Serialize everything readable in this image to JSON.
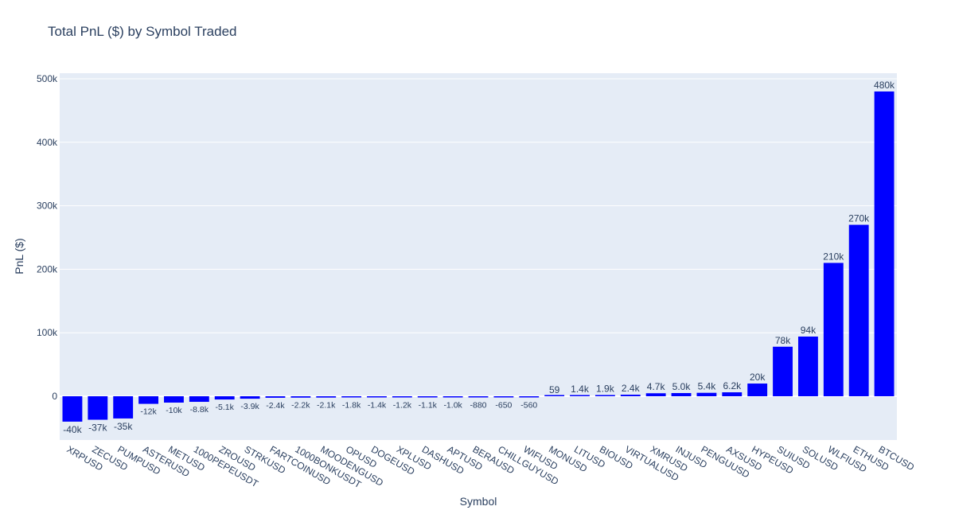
{
  "chart_data": {
    "type": "bar",
    "title": "Total PnL ($) by Symbol Traded",
    "xlabel": "Symbol",
    "ylabel": "PnL ($)",
    "ylim": [
      -70000,
      500000
    ],
    "yticks": [
      0,
      100000,
      200000,
      300000,
      400000,
      500000
    ],
    "ytick_labels": [
      "0",
      "100k",
      "200k",
      "300k",
      "400k",
      "500k"
    ],
    "grid": true,
    "colors": {
      "bar": "#0000ff",
      "plot_bg": "#e5ecf6",
      "grid": "#ffffff",
      "text": "#2a3f5f"
    },
    "categories": [
      "XRPUSD",
      "ZECUSD",
      "PUMPUSD",
      "ASTERUSD",
      "METUSD",
      "1000PEPEUSDT",
      "ZROUSD",
      "STRKUSD",
      "FARTCOINUSD",
      "1000BONKUSDT",
      "MOODENGUSD",
      "OPUSD",
      "DOGEUSD",
      "XPLUSD",
      "DASHUSD",
      "APTUSD",
      "BERAUSD",
      "CHILLGUYUSD",
      "WIFUSD",
      "MONUSD",
      "LITUSD",
      "BIOUSD",
      "VIRTUALUSD",
      "XMRUSD",
      "INJUSD",
      "PENGUUSD",
      "AXSUSD",
      "HYPEUSD",
      "SUIUSD",
      "SOLUSD",
      "WLFIUSD",
      "ETHUSD",
      "BTCUSD"
    ],
    "values": [
      -40000,
      -37000,
      -35000,
      -12000,
      -10000,
      -8800,
      -5100,
      -3900,
      -2400,
      -2200,
      -2100,
      -1800,
      -1400,
      -1200,
      -1100,
      -1000,
      -880,
      -650,
      -560,
      59,
      1400,
      1900,
      2400,
      4700,
      5000,
      5400,
      6200,
      20000,
      78000,
      94000,
      210000,
      270000,
      480000
    ],
    "labels": [
      "-40k",
      "-37k",
      "-35k",
      "-12k",
      "-10k",
      "-8.8k",
      "-5.1k",
      "-3.9k",
      "-2.4k",
      "-2.2k",
      "-2.1k",
      "-1.8k",
      "-1.4k",
      "-1.2k",
      "-1.1k",
      "-1.0k",
      "-880",
      "-650",
      "-560",
      "59",
      "1.4k",
      "1.9k",
      "2.4k",
      "4.7k",
      "5.0k",
      "5.4k",
      "6.2k",
      "20k",
      "78k",
      "94k",
      "210k",
      "270k",
      "480k"
    ]
  }
}
